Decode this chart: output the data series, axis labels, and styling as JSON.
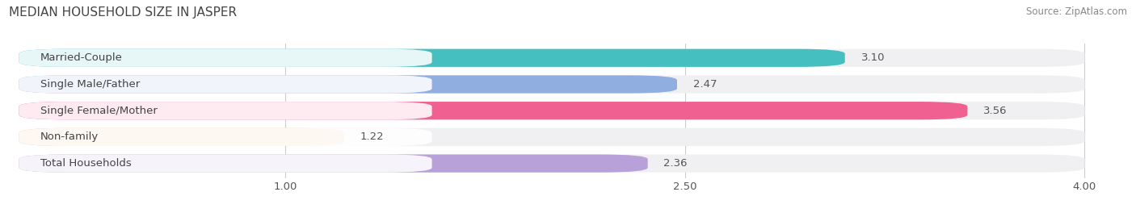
{
  "title": "MEDIAN HOUSEHOLD SIZE IN JASPER",
  "source": "Source: ZipAtlas.com",
  "categories": [
    "Married-Couple",
    "Single Male/Father",
    "Single Female/Mother",
    "Non-family",
    "Total Households"
  ],
  "values": [
    3.1,
    2.47,
    3.56,
    1.22,
    2.36
  ],
  "bar_colors": [
    "#45bfbf",
    "#90aee0",
    "#f06090",
    "#f5c89a",
    "#b8a0d8"
  ],
  "bar_bg_color": "#f0f0f2",
  "xmin": 0.0,
  "xmax": 4.0,
  "xlim_left": -0.05,
  "xlim_right": 4.15,
  "xticks": [
    1.0,
    2.5,
    4.0
  ],
  "label_fontsize": 9.5,
  "value_fontsize": 9.5,
  "title_fontsize": 11,
  "source_fontsize": 8.5,
  "background_color": "#ffffff",
  "label_pill_color": "#ffffff",
  "bar_height": 0.68,
  "bar_gap": 0.32
}
